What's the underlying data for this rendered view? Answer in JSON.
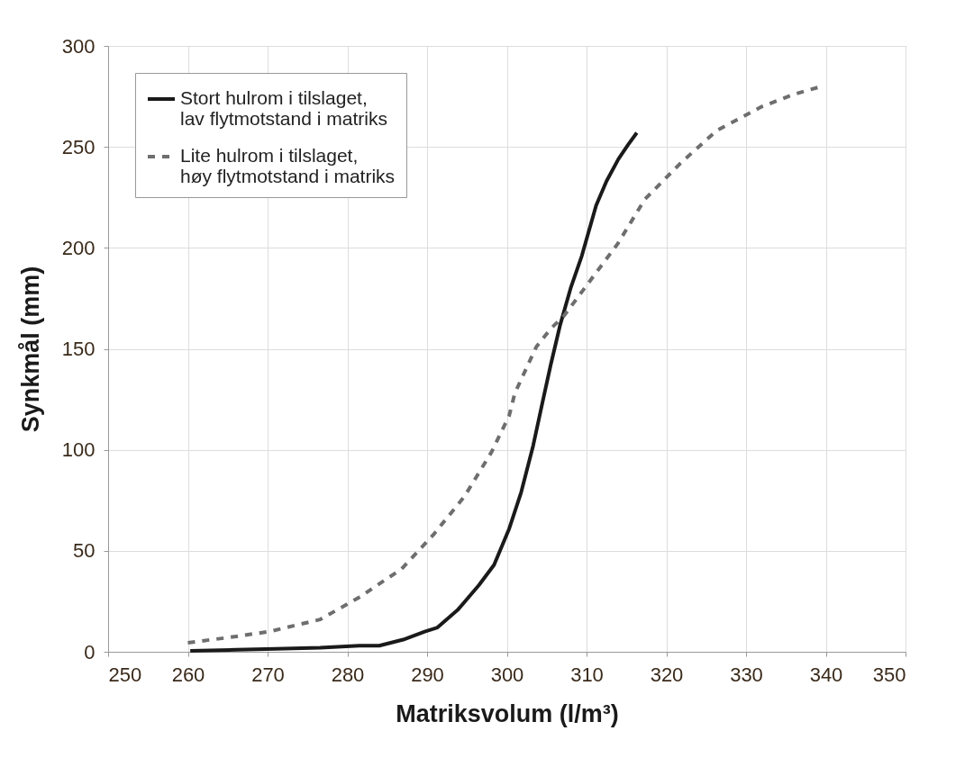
{
  "chart_data": {
    "type": "line",
    "xlabel": "Matriksvolum (l/m³)",
    "ylabel": "Synkmål (mm)",
    "xlim": [
      250,
      350
    ],
    "xticks": [
      250,
      260,
      270,
      280,
      290,
      300,
      310,
      320,
      330,
      340,
      350
    ],
    "ylim": [
      0,
      300
    ],
    "yticks": [
      0,
      50,
      100,
      150,
      200,
      250,
      300
    ],
    "grid": true,
    "legend": "top left",
    "series": [
      {
        "name": "Stort hulrom i tilslaget, lav flytmotstand i matriks",
        "color": "#1a1a1a",
        "line_style": "solid",
        "x": [
          260.3,
          266,
          271,
          276.6,
          281.5,
          284,
          287,
          289.7,
          291.3,
          293.9,
          296.5,
          298.4,
          300.3,
          301.8,
          303.3,
          304.5,
          305.5,
          306.7,
          308,
          309.4,
          311.2,
          312.5,
          314,
          315.2,
          316.3
        ],
        "values": [
          0.5,
          1,
          1.5,
          2,
          3,
          3,
          6,
          10,
          12,
          21,
          33,
          43,
          61,
          79,
          102,
          124,
          142,
          162,
          180,
          196,
          221,
          233,
          244,
          251,
          257
        ]
      },
      {
        "name": "Lite hulrom i tilslaget, høy flytmotstand i matriks",
        "color": "#6e6e6e",
        "line_style": "dashed",
        "x": [
          260,
          265,
          270.2,
          276.6,
          281.5,
          286.8,
          290.8,
          294.7,
          298.1,
          300.3,
          301,
          303.7,
          305.5,
          307.1,
          310.5,
          313.9,
          317.3,
          321.8,
          326.3,
          332,
          336,
          339.5
        ],
        "values": [
          4.5,
          7,
          10,
          16,
          27,
          41,
          58,
          77,
          99,
          117,
          128,
          151,
          160,
          166,
          184,
          202,
          224,
          242,
          258,
          270,
          276,
          280
        ]
      }
    ]
  }
}
